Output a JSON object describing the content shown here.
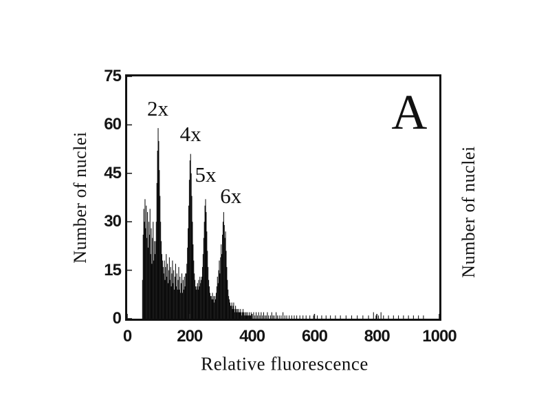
{
  "figure": {
    "background": "#ffffff",
    "ink": "#101010"
  },
  "chart_data": {
    "type": "bar",
    "title": "",
    "xlabel": "Relative fluorescence",
    "ylabel_left": "Number of nuclei",
    "ylabel_right": "Number of nuclei",
    "xlim": [
      0,
      1000
    ],
    "ylim": [
      0,
      75
    ],
    "x_ticks": [
      0,
      200,
      400,
      600,
      800,
      1000
    ],
    "y_ticks": [
      0,
      15,
      30,
      45,
      60,
      75
    ],
    "grid": false,
    "legend": false,
    "bar_color": "#0a0a0a",
    "bins_start": 48,
    "bin_width": 2,
    "heights": [
      12,
      26,
      34,
      30,
      37,
      28,
      35,
      25,
      33,
      22,
      30,
      26,
      34,
      20,
      28,
      17,
      25,
      30,
      18,
      24,
      20,
      24,
      30,
      42,
      52,
      59,
      55,
      46,
      38,
      30,
      24,
      20,
      18,
      16,
      14,
      18,
      12,
      16,
      20,
      13,
      17,
      11,
      15,
      19,
      12,
      16,
      10,
      14,
      18,
      11,
      15,
      9,
      13,
      17,
      10,
      14,
      9,
      12,
      16,
      9,
      13,
      8,
      11,
      14,
      8,
      12,
      9,
      13,
      10,
      14,
      14,
      17,
      22,
      28,
      35,
      43,
      49,
      51,
      45,
      38,
      30,
      23,
      18,
      14,
      12,
      10,
      9,
      10,
      11,
      9,
      12,
      10,
      13,
      11,
      12,
      13,
      16,
      20,
      25,
      30,
      35,
      37,
      33,
      27,
      21,
      16,
      12,
      10,
      8,
      7,
      7,
      6,
      8,
      6,
      7,
      5,
      7,
      6,
      8,
      10,
      13,
      11,
      15,
      18,
      14,
      19,
      23,
      20,
      26,
      30,
      33,
      29,
      25,
      27,
      21,
      16,
      12,
      9,
      7,
      6,
      5,
      4,
      4,
      5,
      3,
      4,
      5,
      3,
      2,
      4,
      3,
      2,
      3,
      2,
      3,
      2,
      2,
      3,
      2,
      1,
      2,
      3,
      2,
      1,
      2,
      1,
      2,
      1,
      2,
      1,
      1,
      2,
      1,
      1,
      2,
      1,
      1
    ],
    "sparse_bars": [
      [
        404,
        2
      ],
      [
        408,
        1
      ],
      [
        412,
        2
      ],
      [
        416,
        1
      ],
      [
        420,
        2
      ],
      [
        424,
        1
      ],
      [
        428,
        2
      ],
      [
        432,
        1
      ],
      [
        436,
        2
      ],
      [
        440,
        1
      ],
      [
        444,
        1
      ],
      [
        448,
        2
      ],
      [
        452,
        1
      ],
      [
        458,
        1
      ],
      [
        462,
        2
      ],
      [
        466,
        1
      ],
      [
        470,
        1
      ],
      [
        476,
        2
      ],
      [
        480,
        1
      ],
      [
        486,
        1
      ],
      [
        492,
        1
      ],
      [
        498,
        2
      ],
      [
        504,
        1
      ],
      [
        510,
        1
      ],
      [
        518,
        1
      ],
      [
        526,
        1
      ],
      [
        534,
        1
      ],
      [
        542,
        1
      ],
      [
        552,
        1
      ],
      [
        562,
        1
      ],
      [
        572,
        1
      ],
      [
        584,
        1
      ],
      [
        596,
        1
      ],
      [
        608,
        1
      ],
      [
        622,
        1
      ],
      [
        636,
        1
      ],
      [
        650,
        1
      ],
      [
        666,
        1
      ],
      [
        682,
        1
      ],
      [
        700,
        1
      ],
      [
        718,
        1
      ],
      [
        736,
        1
      ],
      [
        754,
        1
      ],
      [
        772,
        1
      ],
      [
        788,
        2
      ],
      [
        796,
        1
      ],
      [
        804,
        1
      ],
      [
        812,
        2
      ],
      [
        820,
        1
      ],
      [
        836,
        1
      ],
      [
        852,
        1
      ],
      [
        868,
        1
      ],
      [
        884,
        1
      ],
      [
        900,
        1
      ],
      [
        916,
        1
      ],
      [
        932,
        1
      ],
      [
        948,
        1
      ]
    ],
    "annotations": [
      {
        "label": "2x",
        "x": 98,
        "y": 65
      },
      {
        "label": "4x",
        "x": 203,
        "y": 57
      },
      {
        "label": "5x",
        "x": 251,
        "y": 44.5
      },
      {
        "label": "6x",
        "x": 332,
        "y": 38
      }
    ],
    "panel_label": {
      "text": "A",
      "x": 904,
      "y": 64
    }
  }
}
